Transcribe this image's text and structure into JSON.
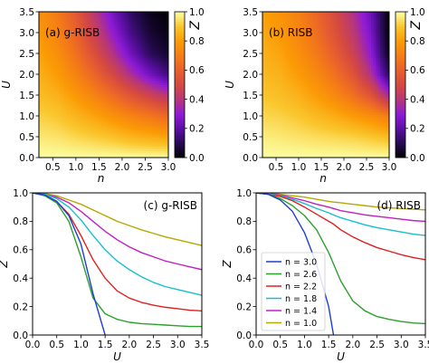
{
  "colorbar": {
    "label": "Z",
    "ticks": [
      "0.0",
      "0.2",
      "0.4",
      "0.6",
      "0.8",
      "1.0"
    ],
    "stops": [
      "#000004",
      "#280b54",
      "#5b0fa4",
      "#8f1bd6",
      "#b73779",
      "#d44842",
      "#e8602d",
      "#f57d15",
      "#fb9b06",
      "#fac62d",
      "#fcffa4"
    ]
  },
  "chart_data": [
    {
      "type": "heatmap",
      "panel_label": "(a) g-RISB",
      "xlabel": "n",
      "ylabel": "U",
      "xlim": [
        0.2,
        3.0
      ],
      "ylim": [
        0.0,
        3.5
      ],
      "xticks": [
        "0.5",
        "1.0",
        "1.5",
        "2.0",
        "2.5",
        "3.0"
      ],
      "yticks": [
        "0.0",
        "0.5",
        "1.0",
        "1.5",
        "2.0",
        "2.5",
        "3.0",
        "3.5"
      ],
      "value": "Z",
      "vlim": [
        0.0,
        1.0
      ],
      "grid": [
        [
          1.0,
          1.0,
          1.0,
          1.0,
          1.0,
          1.0,
          1.0,
          1.0
        ],
        [
          0.96,
          0.95,
          0.93,
          0.91,
          0.89,
          0.86,
          0.84,
          0.82
        ],
        [
          0.92,
          0.9,
          0.86,
          0.82,
          0.77,
          0.72,
          0.68,
          0.63
        ],
        [
          0.88,
          0.85,
          0.79,
          0.72,
          0.64,
          0.55,
          0.47,
          0.4
        ],
        [
          0.85,
          0.8,
          0.72,
          0.62,
          0.5,
          0.37,
          0.25,
          0.15
        ],
        [
          0.82,
          0.76,
          0.66,
          0.53,
          0.39,
          0.24,
          0.11,
          0.05
        ],
        [
          0.79,
          0.72,
          0.61,
          0.46,
          0.31,
          0.16,
          0.06,
          0.02
        ],
        [
          0.77,
          0.69,
          0.57,
          0.41,
          0.25,
          0.11,
          0.03,
          0.0
        ]
      ]
    },
    {
      "type": "heatmap",
      "panel_label": "(b) RISB",
      "xlabel": "n",
      "ylabel": "U",
      "xlim": [
        0.2,
        3.0
      ],
      "ylim": [
        0.0,
        3.5
      ],
      "xticks": [
        "0.5",
        "1.0",
        "1.5",
        "2.0",
        "2.5",
        "3.0"
      ],
      "yticks": [
        "0.0",
        "0.5",
        "1.0",
        "1.5",
        "2.0",
        "2.5",
        "3.0",
        "3.5"
      ],
      "value": "Z",
      "vlim": [
        0.0,
        1.0
      ],
      "grid": [
        [
          1.0,
          1.0,
          1.0,
          1.0,
          1.0,
          1.0,
          1.0,
          1.0
        ],
        [
          0.97,
          0.96,
          0.95,
          0.94,
          0.93,
          0.92,
          0.9,
          0.88
        ],
        [
          0.93,
          0.92,
          0.9,
          0.87,
          0.84,
          0.8,
          0.76,
          0.7
        ],
        [
          0.9,
          0.88,
          0.85,
          0.8,
          0.74,
          0.66,
          0.55,
          0.35
        ],
        [
          0.87,
          0.85,
          0.8,
          0.74,
          0.66,
          0.55,
          0.38,
          0.1
        ],
        [
          0.85,
          0.82,
          0.76,
          0.69,
          0.59,
          0.47,
          0.3,
          0.02
        ],
        [
          0.83,
          0.79,
          0.73,
          0.65,
          0.54,
          0.42,
          0.26,
          0.0
        ],
        [
          0.81,
          0.77,
          0.71,
          0.62,
          0.51,
          0.38,
          0.23,
          0.0
        ]
      ]
    },
    {
      "type": "line",
      "panel_label": "(c) g-RISB",
      "xlabel": "U",
      "ylabel": "Z",
      "xlim": [
        0.0,
        3.5
      ],
      "ylim": [
        0.0,
        1.0
      ],
      "xticks": [
        "0.0",
        "0.5",
        "1.0",
        "1.5",
        "2.0",
        "2.5",
        "3.0",
        "3.5"
      ],
      "yticks": [
        "0.0",
        "0.2",
        "0.4",
        "0.6",
        "0.8",
        "1.0"
      ],
      "x": [
        0.0,
        0.25,
        0.5,
        0.75,
        1.0,
        1.25,
        1.5,
        1.75,
        2.0,
        2.25,
        2.5,
        2.75,
        3.0,
        3.25,
        3.5
      ],
      "series": [
        {
          "n": 3.0,
          "color": "#1f3fd1",
          "values": [
            1.0,
            0.985,
            0.94,
            0.84,
            0.64,
            0.29,
            0.0,
            null,
            null,
            null,
            null,
            null,
            null,
            null,
            null
          ]
        },
        {
          "n": 2.6,
          "color": "#2ca02c",
          "values": [
            1.0,
            0.98,
            0.93,
            0.8,
            0.55,
            0.26,
            0.15,
            0.11,
            0.09,
            0.08,
            0.075,
            0.07,
            0.065,
            0.06,
            0.06
          ]
        },
        {
          "n": 2.2,
          "color": "#e02020",
          "values": [
            1.0,
            0.985,
            0.94,
            0.85,
            0.7,
            0.53,
            0.4,
            0.31,
            0.26,
            0.23,
            0.21,
            0.195,
            0.185,
            0.175,
            0.17
          ]
        },
        {
          "n": 1.8,
          "color": "#17becf",
          "values": [
            1.0,
            0.99,
            0.96,
            0.9,
            0.81,
            0.7,
            0.6,
            0.52,
            0.46,
            0.41,
            0.37,
            0.34,
            0.32,
            0.3,
            0.28
          ]
        },
        {
          "n": 1.4,
          "color": "#c020c0",
          "values": [
            1.0,
            0.99,
            0.97,
            0.93,
            0.87,
            0.8,
            0.73,
            0.67,
            0.62,
            0.58,
            0.55,
            0.52,
            0.5,
            0.48,
            0.46
          ]
        },
        {
          "n": 1.0,
          "color": "#b5a800",
          "values": [
            1.0,
            0.995,
            0.98,
            0.95,
            0.92,
            0.88,
            0.84,
            0.8,
            0.77,
            0.74,
            0.715,
            0.69,
            0.67,
            0.65,
            0.63
          ]
        }
      ]
    },
    {
      "type": "line",
      "panel_label": "(d) RISB",
      "xlabel": "U",
      "ylabel": "Z",
      "xlim": [
        0.0,
        3.5
      ],
      "ylim": [
        0.0,
        1.0
      ],
      "xticks": [
        "0.0",
        "0.5",
        "1.0",
        "1.5",
        "2.0",
        "2.5",
        "3.0",
        "3.5"
      ],
      "yticks": [
        "0.0",
        "0.2",
        "0.4",
        "0.6",
        "0.8",
        "1.0"
      ],
      "legend_position": "bottom-left",
      "x": [
        0.0,
        0.25,
        0.5,
        0.75,
        1.0,
        1.25,
        1.5,
        1.6,
        1.75,
        2.0,
        2.25,
        2.5,
        2.75,
        3.0,
        3.25,
        3.5
      ],
      "series": [
        {
          "name": "n = 3.0",
          "n": 3.0,
          "color": "#1f3fd1",
          "values": [
            1.0,
            0.99,
            0.95,
            0.87,
            0.72,
            0.5,
            0.2,
            0.0,
            null,
            null,
            null,
            null,
            null,
            null,
            null,
            null
          ]
        },
        {
          "name": "n = 2.6",
          "n": 2.6,
          "color": "#2ca02c",
          "values": [
            1.0,
            0.99,
            0.96,
            0.91,
            0.84,
            0.74,
            0.58,
            0.5,
            0.38,
            0.24,
            0.17,
            0.13,
            0.11,
            0.095,
            0.085,
            0.08
          ]
        },
        {
          "name": "n = 2.2",
          "n": 2.2,
          "color": "#e02020",
          "values": [
            1.0,
            0.99,
            0.975,
            0.945,
            0.9,
            0.85,
            0.8,
            0.78,
            0.74,
            0.69,
            0.65,
            0.615,
            0.59,
            0.565,
            0.545,
            0.53
          ]
        },
        {
          "name": "n = 1.8",
          "n": 1.8,
          "color": "#17becf",
          "values": [
            1.0,
            0.995,
            0.98,
            0.955,
            0.925,
            0.89,
            0.86,
            0.845,
            0.825,
            0.8,
            0.775,
            0.755,
            0.74,
            0.725,
            0.71,
            0.7
          ]
        },
        {
          "name": "n = 1.4",
          "n": 1.4,
          "color": "#c020c0",
          "values": [
            1.0,
            0.995,
            0.985,
            0.965,
            0.945,
            0.92,
            0.9,
            0.89,
            0.875,
            0.86,
            0.845,
            0.835,
            0.825,
            0.815,
            0.805,
            0.8
          ]
        },
        {
          "name": "n = 1.0",
          "n": 1.0,
          "color": "#b5a800",
          "values": [
            1.0,
            0.998,
            0.99,
            0.98,
            0.97,
            0.955,
            0.94,
            0.935,
            0.93,
            0.92,
            0.91,
            0.9,
            0.895,
            0.89,
            0.885,
            0.88
          ]
        }
      ]
    }
  ]
}
